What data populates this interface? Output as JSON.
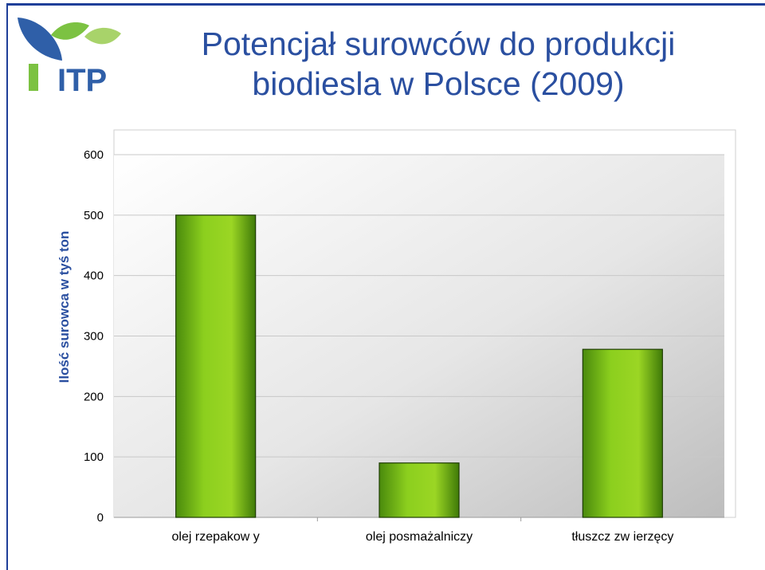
{
  "logo": {
    "text": "ITP",
    "color_blue": "#2f5fa8",
    "color_green": "#7cc242"
  },
  "title": {
    "line1": "Potencjał surowców do produkcji",
    "line2": "biodiesla w Polsce (2009)",
    "color": "#2a4fa0"
  },
  "chart_data": {
    "type": "bar",
    "categories": [
      "olej rzepakowy",
      "olej posmażalniczy",
      "tłuszcz zwierzęcy"
    ],
    "category_labels": [
      "olej rzepakow y",
      "olej posmażalniczy",
      "tłuszcz zw ierzęcy"
    ],
    "values": [
      500,
      90,
      278
    ],
    "ylabel": "Ilość surowca w tyś ton",
    "ylim": [
      0,
      600
    ],
    "yticks": [
      0,
      100,
      200,
      300,
      400,
      500,
      600
    ],
    "grid": true,
    "bar_color": "#74b816",
    "plot_background": "gradient-white-to-gray"
  }
}
